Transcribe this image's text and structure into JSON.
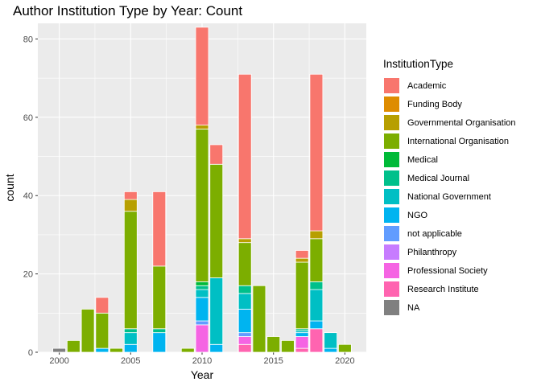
{
  "chart_data": {
    "type": "bar",
    "title": "Author Institution Type by Year: Count",
    "xlabel": "Year",
    "ylabel": "count",
    "xlim": [
      1998.5,
      2021.5
    ],
    "ylim": [
      0,
      84
    ],
    "x_ticks": [
      2000,
      2005,
      2010,
      2015,
      2020
    ],
    "y_ticks": [
      0,
      20,
      40,
      60,
      80
    ],
    "grid": true,
    "stacked": true,
    "legend_title": "InstitutionType",
    "legend_position": "right",
    "categories": [
      "Academic",
      "Funding Body",
      "Governmental Organisation",
      "International Organisation",
      "Medical",
      "Medical Journal",
      "National Government",
      "NGO",
      "not applicable",
      "Philanthropy",
      "Professional Society",
      "Research Institute",
      "NA"
    ],
    "colors": {
      "Academic": "#F8766D",
      "Funding Body": "#DE8C00",
      "Governmental Organisation": "#B79F00",
      "International Organisation": "#7CAE00",
      "Medical": "#00BA38",
      "Medical Journal": "#00C08B",
      "National Government": "#00BFC4",
      "NGO": "#00B4F0",
      "not applicable": "#619CFF",
      "Philanthropy": "#C77CFF",
      "Professional Society": "#F564E3",
      "Research Institute": "#FF64B0",
      "NA": "#808080"
    },
    "series": [
      {
        "year": 2000,
        "segments": [
          {
            "type": "NA",
            "value": 1
          }
        ]
      },
      {
        "year": 2001,
        "segments": [
          {
            "type": "International Organisation",
            "value": 3
          }
        ]
      },
      {
        "year": 2002,
        "segments": [
          {
            "type": "International Organisation",
            "value": 11
          }
        ]
      },
      {
        "year": 2003,
        "segments": [
          {
            "type": "NGO",
            "value": 1
          },
          {
            "type": "International Organisation",
            "value": 9
          },
          {
            "type": "Academic",
            "value": 4
          }
        ]
      },
      {
        "year": 2004,
        "segments": [
          {
            "type": "International Organisation",
            "value": 1
          }
        ]
      },
      {
        "year": 2005,
        "segments": [
          {
            "type": "NGO",
            "value": 2
          },
          {
            "type": "National Government",
            "value": 3
          },
          {
            "type": "Medical Journal",
            "value": 1
          },
          {
            "type": "International Organisation",
            "value": 30
          },
          {
            "type": "Governmental Organisation",
            "value": 3
          },
          {
            "type": "Academic",
            "value": 2
          }
        ]
      },
      {
        "year": 2007,
        "segments": [
          {
            "type": "NGO",
            "value": 5
          },
          {
            "type": "Medical Journal",
            "value": 1
          },
          {
            "type": "International Organisation",
            "value": 16
          },
          {
            "type": "Academic",
            "value": 19
          }
        ]
      },
      {
        "year": 2009,
        "segments": [
          {
            "type": "International Organisation",
            "value": 1
          }
        ]
      },
      {
        "year": 2010,
        "segments": [
          {
            "type": "Professional Society",
            "value": 7
          },
          {
            "type": "not applicable",
            "value": 1
          },
          {
            "type": "NGO",
            "value": 6
          },
          {
            "type": "National Government",
            "value": 2
          },
          {
            "type": "Medical Journal",
            "value": 1
          },
          {
            "type": "Medical",
            "value": 1
          },
          {
            "type": "International Organisation",
            "value": 39
          },
          {
            "type": "Governmental Organisation",
            "value": 1
          },
          {
            "type": "Academic",
            "value": 25
          }
        ]
      },
      {
        "year": 2011,
        "segments": [
          {
            "type": "NGO",
            "value": 2
          },
          {
            "type": "National Government",
            "value": 17
          },
          {
            "type": "International Organisation",
            "value": 29
          },
          {
            "type": "Academic",
            "value": 5
          }
        ]
      },
      {
        "year": 2013,
        "segments": [
          {
            "type": "Research Institute",
            "value": 2
          },
          {
            "type": "Professional Society",
            "value": 2
          },
          {
            "type": "not applicable",
            "value": 1
          },
          {
            "type": "NGO",
            "value": 6
          },
          {
            "type": "National Government",
            "value": 4
          },
          {
            "type": "Medical Journal",
            "value": 2
          },
          {
            "type": "International Organisation",
            "value": 11
          },
          {
            "type": "Governmental Organisation",
            "value": 1
          },
          {
            "type": "Academic",
            "value": 42
          }
        ]
      },
      {
        "year": 2014,
        "segments": [
          {
            "type": "International Organisation",
            "value": 17
          }
        ]
      },
      {
        "year": 2015,
        "segments": [
          {
            "type": "International Organisation",
            "value": 4
          }
        ]
      },
      {
        "year": 2016,
        "segments": [
          {
            "type": "International Organisation",
            "value": 3
          }
        ]
      },
      {
        "year": 2017,
        "segments": [
          {
            "type": "Research Institute",
            "value": 1
          },
          {
            "type": "Professional Society",
            "value": 3
          },
          {
            "type": "NGO",
            "value": 1
          },
          {
            "type": "National Government",
            "value": 0.5
          },
          {
            "type": "Medical Journal",
            "value": 0.5
          },
          {
            "type": "International Organisation",
            "value": 17
          },
          {
            "type": "Governmental Organisation",
            "value": 1
          },
          {
            "type": "Academic",
            "value": 2
          }
        ]
      },
      {
        "year": 2018,
        "segments": [
          {
            "type": "Research Institute",
            "value": 6
          },
          {
            "type": "NGO",
            "value": 2
          },
          {
            "type": "National Government",
            "value": 8
          },
          {
            "type": "Medical Journal",
            "value": 2
          },
          {
            "type": "International Organisation",
            "value": 11
          },
          {
            "type": "Governmental Organisation",
            "value": 2
          },
          {
            "type": "Academic",
            "value": 40
          }
        ]
      },
      {
        "year": 2019,
        "segments": [
          {
            "type": "NGO",
            "value": 1
          },
          {
            "type": "National Government",
            "value": 4
          }
        ]
      },
      {
        "year": 2020,
        "segments": [
          {
            "type": "International Organisation",
            "value": 2
          }
        ]
      }
    ]
  }
}
